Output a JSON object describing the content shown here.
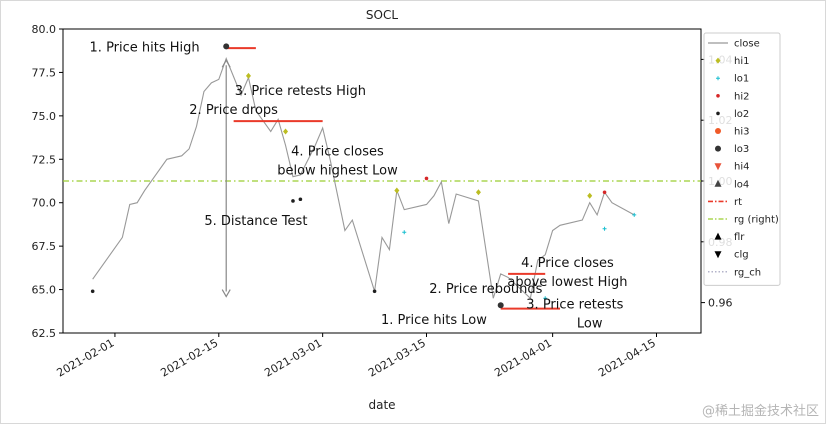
{
  "chart_data": {
    "type": "line",
    "title": "SOCL",
    "xlabel": "date",
    "ylabel": "",
    "x_ticks": [
      "2021-02-01",
      "2021-02-15",
      "2021-03-01",
      "2021-03-15",
      "2021-04-01",
      "2021-04-15"
    ],
    "y_ticks": [
      "62.5",
      "65.0",
      "67.5",
      "70.0",
      "72.5",
      "75.0",
      "77.5",
      "80.0"
    ],
    "y2_ticks": [
      "0.96",
      "0.98",
      "1.00",
      "1.02",
      "1.04"
    ],
    "ylim": [
      62.5,
      80.0
    ],
    "y2lim": [
      0.95,
      1.05
    ],
    "xlim": [
      "2021-01-25",
      "2021-04-21"
    ],
    "grid": false,
    "legend_position": "top-right",
    "series": [
      {
        "name": "close",
        "color": "#999999",
        "points": [
          [
            "2021-01-29",
            65.6
          ],
          [
            "2021-02-02",
            68.0
          ],
          [
            "2021-02-03",
            69.9
          ],
          [
            "2021-02-04",
            70.0
          ],
          [
            "2021-02-05",
            70.7
          ],
          [
            "2021-02-08",
            72.5
          ],
          [
            "2021-02-09",
            72.6
          ],
          [
            "2021-02-10",
            72.7
          ],
          [
            "2021-02-11",
            73.1
          ],
          [
            "2021-02-12",
            74.4
          ],
          [
            "2021-02-13",
            76.4
          ],
          [
            "2021-02-14",
            76.9
          ],
          [
            "2021-02-15",
            77.1
          ],
          [
            "2021-02-16",
            78.3
          ],
          [
            "2021-02-18",
            76.2
          ],
          [
            "2021-02-19",
            77.2
          ],
          [
            "2021-02-20",
            75.3
          ],
          [
            "2021-02-22",
            74.1
          ],
          [
            "2021-02-23",
            74.8
          ],
          [
            "2021-02-24",
            73.3
          ],
          [
            "2021-02-25",
            71.5
          ],
          [
            "2021-02-26",
            71.6
          ],
          [
            "2021-02-28",
            73.3
          ],
          [
            "2021-03-01",
            74.3
          ],
          [
            "2021-03-02",
            72.5
          ],
          [
            "2021-03-04",
            68.4
          ],
          [
            "2021-03-05",
            69.0
          ],
          [
            "2021-03-08",
            64.9
          ],
          [
            "2021-03-09",
            68.0
          ],
          [
            "2021-03-10",
            67.3
          ],
          [
            "2021-03-11",
            70.7
          ],
          [
            "2021-03-12",
            69.6
          ],
          [
            "2021-03-15",
            69.9
          ],
          [
            "2021-03-16",
            70.4
          ],
          [
            "2021-03-17",
            71.2
          ],
          [
            "2021-03-18",
            68.8
          ],
          [
            "2021-03-19",
            70.5
          ],
          [
            "2021-03-22",
            70.1
          ],
          [
            "2021-03-24",
            64.5
          ],
          [
            "2021-03-25",
            65.9
          ],
          [
            "2021-03-26",
            65.7
          ],
          [
            "2021-03-29",
            64.5
          ],
          [
            "2021-03-30",
            66.7
          ],
          [
            "2021-03-31",
            67.0
          ],
          [
            "2021-04-01",
            68.4
          ],
          [
            "2021-04-02",
            68.7
          ],
          [
            "2021-04-05",
            69.0
          ],
          [
            "2021-04-06",
            70.0
          ],
          [
            "2021-04-07",
            69.3
          ],
          [
            "2021-04-08",
            70.6
          ],
          [
            "2021-04-09",
            70.0
          ],
          [
            "2021-04-12",
            69.3
          ]
        ]
      },
      {
        "name": "hi1",
        "color": "#bcbd22",
        "marker": "diamond",
        "points": [
          [
            "2021-02-19",
            77.3
          ],
          [
            "2021-02-24",
            74.1
          ],
          [
            "2021-03-11",
            70.7
          ],
          [
            "2021-03-22",
            70.6
          ],
          [
            "2021-04-06",
            70.4
          ]
        ]
      },
      {
        "name": "lo1",
        "color": "#17becf",
        "marker": "plus",
        "points": [
          [
            "2021-03-12",
            68.3
          ],
          [
            "2021-03-31",
            64.5
          ],
          [
            "2021-04-08",
            68.5
          ],
          [
            "2021-04-12",
            69.3
          ]
        ]
      },
      {
        "name": "hi2",
        "color": "#d62728",
        "marker": "dot",
        "points": [
          [
            "2021-03-15",
            71.4
          ],
          [
            "2021-04-08",
            70.6
          ]
        ]
      },
      {
        "name": "lo2",
        "color": "#1f1f1f",
        "marker": "dot",
        "points": [
          [
            "2021-01-29",
            64.9
          ],
          [
            "2021-02-25",
            70.1
          ],
          [
            "2021-02-26",
            70.2
          ],
          [
            "2021-03-08",
            64.9
          ]
        ]
      },
      {
        "name": "hi3",
        "color": "#f05a28",
        "marker": "circle",
        "points": []
      },
      {
        "name": "lo3",
        "color": "#333333",
        "marker": "circle",
        "points": [
          [
            "2021-02-16",
            79.0
          ],
          [
            "2021-03-25",
            64.1
          ]
        ]
      },
      {
        "name": "hi4",
        "color": "#e8533a",
        "marker": "triangle-down",
        "points": []
      },
      {
        "name": "lo4",
        "color": "#444444",
        "marker": "triangle-up",
        "points": []
      },
      {
        "name": "rt",
        "color": "#ea3a2a",
        "style": "dashdot",
        "segments": [
          [
            [
              "2021-02-16",
              78.9
            ],
            [
              "2021-02-20",
              78.9
            ]
          ],
          [
            [
              "2021-02-17",
              74.7
            ],
            [
              "2021-03-01",
              74.7
            ]
          ],
          [
            [
              "2021-03-26",
              65.9
            ],
            [
              "2021-03-31",
              65.9
            ]
          ],
          [
            [
              "2021-03-25",
              63.9
            ],
            [
              "2021-04-02",
              63.9
            ]
          ]
        ]
      },
      {
        "name": "rg (right)",
        "color": "#9acd32",
        "style": "dashdot",
        "axis": "right",
        "value": 1.0
      },
      {
        "name": "flr",
        "color": "#000000",
        "marker": "triangle-up",
        "points": []
      },
      {
        "name": "clg",
        "color": "#000000",
        "marker": "triangle-down",
        "points": []
      },
      {
        "name": "rg_ch",
        "color": "#9a9ab8",
        "style": "dotted",
        "points": []
      }
    ],
    "distance_arrow": {
      "x": "2021-02-16",
      "y_top": 78.2,
      "y_bottom": 64.6
    },
    "annotations": [
      {
        "text": "1. Price hits High",
        "x": "2021-02-05",
        "y": 79.0
      },
      {
        "text": "3. Price retests High",
        "x": "2021-02-26",
        "y": 76.5
      },
      {
        "text": "2. Price drops",
        "x": "2021-02-17",
        "y": 75.4
      },
      {
        "text": "4. Price closes",
        "x": "2021-03-03",
        "y": 73.0
      },
      {
        "text": "below highest Low",
        "x": "2021-03-03",
        "y": 71.9
      },
      {
        "text": "5. Distance Test",
        "x": "2021-02-20",
        "y": 69.0
      },
      {
        "text": "4. Price closes",
        "x": "2021-04-03",
        "y": 66.6
      },
      {
        "text": "above lowest High",
        "x": "2021-04-03",
        "y": 65.5
      },
      {
        "text": "2. Price rebounds",
        "x": "2021-03-23",
        "y": 65.1
      },
      {
        "text": "3. Price retests",
        "x": "2021-04-04",
        "y": 64.2
      },
      {
        "text": "Low",
        "x": "2021-04-06",
        "y": 63.1
      },
      {
        "text": "1. Price hits Low",
        "x": "2021-03-16",
        "y": 63.3
      }
    ]
  },
  "watermark": "@稀土掘金技术社区"
}
